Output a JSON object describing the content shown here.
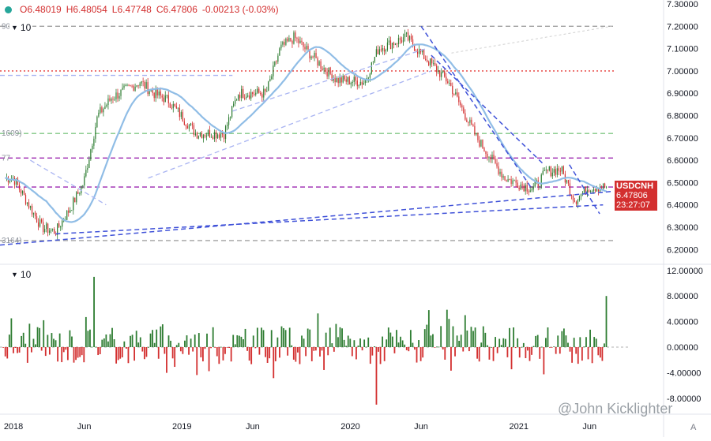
{
  "legend": {
    "open": "O6.48019",
    "high": "H6.48054",
    "low": "L6.47748",
    "close": "C6.47806",
    "change": "-0.00213 (-0.03%)"
  },
  "main_indicator_label": "10",
  "sub_indicator_label": "10",
  "price_tag": {
    "symbol": "USDCNH",
    "price": "6.47806",
    "countdown": "23:27:07"
  },
  "level_labels": [
    "90",
    "1609)",
    "77",
    "3164)"
  ],
  "watermark": "@John Kicklighter",
  "corner_button": "A",
  "colors": {
    "up": "#2e7d32",
    "down": "#d32f2f",
    "ma": "#90bde6",
    "trend": "#3f51d8",
    "tag": "#d32f2f"
  },
  "chart_data": [
    {
      "type": "candlestick",
      "x_tick_labels": [
        "2018",
        "Jun",
        "2019",
        "Jun",
        "2020",
        "Jun",
        "2021",
        "Jun"
      ],
      "y_tick_labels": [
        "7.30000",
        "7.20000",
        "7.10000",
        "7.00000",
        "6.90000",
        "6.80000",
        "6.70000",
        "6.60000",
        "6.50000",
        "6.40000",
        "6.30000",
        "6.20000"
      ],
      "ylim": [
        6.18,
        7.32
      ],
      "close_path": [
        [
          "2018-01",
          6.52
        ],
        [
          "2018-03",
          6.3
        ],
        [
          "2018-04",
          6.28
        ],
        [
          "2018-05",
          6.38
        ],
        [
          "2018-06",
          6.5
        ],
        [
          "2018-07",
          6.8
        ],
        [
          "2018-08",
          6.88
        ],
        [
          "2018-10",
          6.95
        ],
        [
          "2018-11",
          6.9
        ],
        [
          "2018-12",
          6.87
        ],
        [
          "2019-02",
          6.72
        ],
        [
          "2019-04",
          6.72
        ],
        [
          "2019-05",
          6.9
        ],
        [
          "2019-07",
          6.9
        ],
        [
          "2019-08",
          7.1
        ],
        [
          "2019-09",
          7.15
        ],
        [
          "2019-11",
          7.02
        ],
        [
          "2019-12",
          6.96
        ],
        [
          "2020-02",
          6.95
        ],
        [
          "2020-03",
          7.1
        ],
        [
          "2020-05",
          7.15
        ],
        [
          "2020-06",
          7.08
        ],
        [
          "2020-08",
          6.95
        ],
        [
          "2020-10",
          6.7
        ],
        [
          "2020-12",
          6.52
        ],
        [
          "2021-02",
          6.47
        ],
        [
          "2021-03",
          6.55
        ],
        [
          "2021-04",
          6.56
        ],
        [
          "2021-05",
          6.42
        ],
        [
          "2021-06",
          6.48
        ]
      ],
      "moving_average_label": "10",
      "horizontal_levels": [
        {
          "value": 7.2,
          "color": "#a0a0a0",
          "style": "dashed"
        },
        {
          "value": 7.0,
          "color": "#e53935",
          "style": "dotted"
        },
        {
          "value": 6.72,
          "color": "#81c784",
          "style": "dashed"
        },
        {
          "value": 6.61,
          "color": "#9c27b0",
          "style": "dashed"
        },
        {
          "value": 6.48,
          "color": "#9c27b0",
          "style": "dashed"
        },
        {
          "value": 6.24,
          "color": "#a0a0a0",
          "style": "dashed"
        }
      ]
    },
    {
      "type": "bar",
      "label": "10",
      "y_tick_labels": [
        "12.00000",
        "8.00000",
        "4.00000",
        "0.00000",
        "-4.00000",
        "-8.00000"
      ],
      "ylim": [
        -10,
        13
      ],
      "notable_values": {
        "max": 11,
        "min": -9,
        "last": 8
      }
    }
  ]
}
